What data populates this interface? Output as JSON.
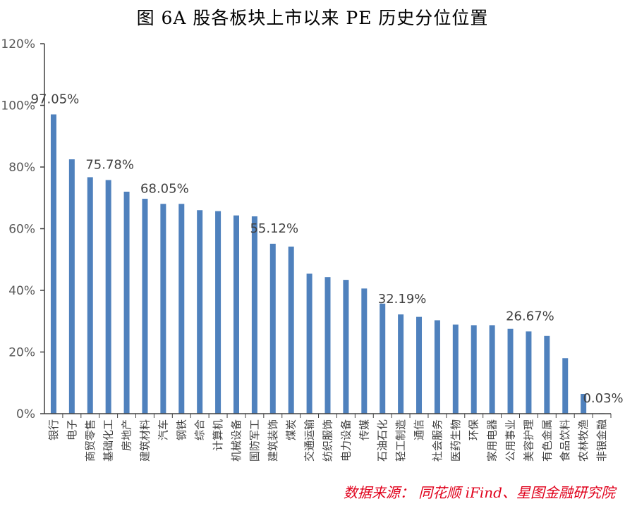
{
  "chart_data": {
    "type": "bar",
    "title": "图 6A 股各板块上市以来 PE 历史分位位置",
    "categories": [
      "银行",
      "电子",
      "商贸零售",
      "基础化工",
      "房地产",
      "建筑材料",
      "汽车",
      "钢铁",
      "综合",
      "计算机",
      "机械设备",
      "国防军工",
      "建筑装饰",
      "煤炭",
      "交通运输",
      "纺织服饰",
      "电力设备",
      "传媒",
      "石油石化",
      "轻工制造",
      "通信",
      "社会服务",
      "医药生物",
      "环保",
      "家用电器",
      "公用事业",
      "美容护理",
      "有色金属",
      "食品饮料",
      "农林牧渔",
      "非银金融"
    ],
    "values": [
      97.05,
      82.5,
      76.7,
      75.78,
      72.0,
      69.7,
      68.05,
      68.05,
      66.0,
      65.7,
      64.3,
      64.0,
      55.12,
      54.2,
      45.4,
      44.3,
      43.4,
      40.6,
      35.7,
      32.19,
      31.4,
      30.3,
      28.9,
      28.7,
      28.7,
      27.5,
      26.67,
      25.2,
      18.0,
      6.4,
      0.03
    ],
    "data_labels": [
      {
        "index": 0,
        "text": "97.05%"
      },
      {
        "index": 3,
        "text": "75.78%"
      },
      {
        "index": 6,
        "text": "68.05%"
      },
      {
        "index": 12,
        "text": "55.12%"
      },
      {
        "index": 19,
        "text": "32.19%"
      },
      {
        "index": 26,
        "text": "26.67%"
      },
      {
        "index": 30,
        "text": "0.03%"
      }
    ],
    "yticks": [
      "0%",
      "20%",
      "40%",
      "60%",
      "80%",
      "100%",
      "120%"
    ],
    "ylim": [
      0,
      120
    ],
    "bar_color": "#4f81bd",
    "grid": false
  },
  "source": "数据来源： 同花顺 iFind、星图金融研究院",
  "colors": {
    "source_text": "#e0001b"
  }
}
